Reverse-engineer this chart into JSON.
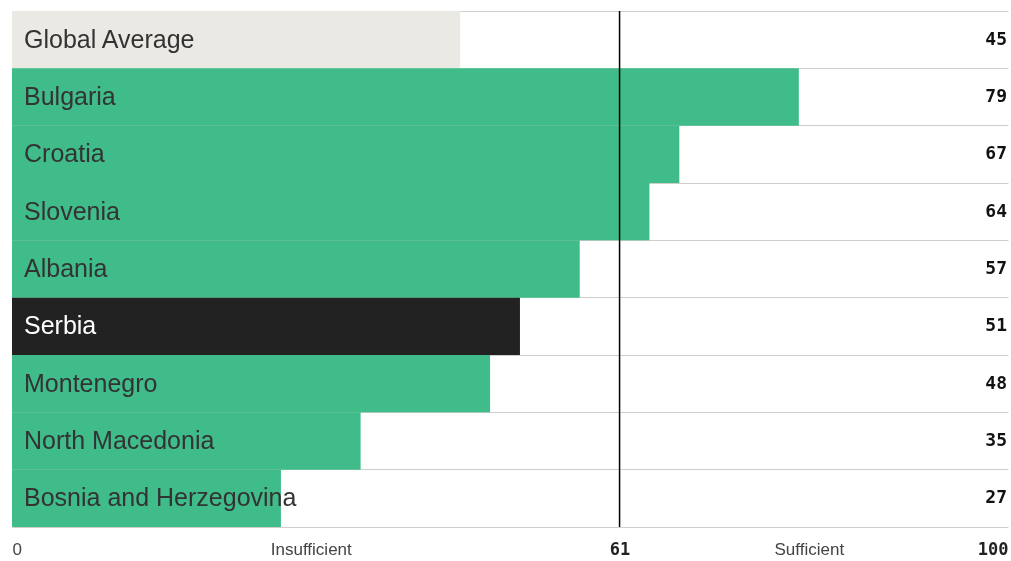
{
  "chart_data": {
    "type": "bar",
    "orientation": "horizontal",
    "categories": [
      "Global Average",
      "Bulgaria",
      "Croatia",
      "Slovenia",
      "Albania",
      "Serbia",
      "Montenegro",
      "North Macedonia",
      "Bosnia and Herzegovina"
    ],
    "values": [
      45,
      79,
      67,
      64,
      57,
      51,
      48,
      35,
      27
    ],
    "colors": [
      "#ebe9e4",
      "#3fbc89",
      "#3fbc89",
      "#3fbc89",
      "#3fbc89",
      "#222222",
      "#3fbc89",
      "#3fbc89",
      "#3fbc89"
    ],
    "xlim": [
      0,
      100
    ],
    "xticks": [
      0,
      {
        "value": 30,
        "label": "Insufficient"
      },
      61,
      {
        "value": 80,
        "label": "Sufficient"
      },
      100
    ],
    "ref_lines": [
      {
        "axis": "x",
        "value": 61,
        "color": "#000000"
      }
    ],
    "grid": "y",
    "data_labels": true
  }
}
